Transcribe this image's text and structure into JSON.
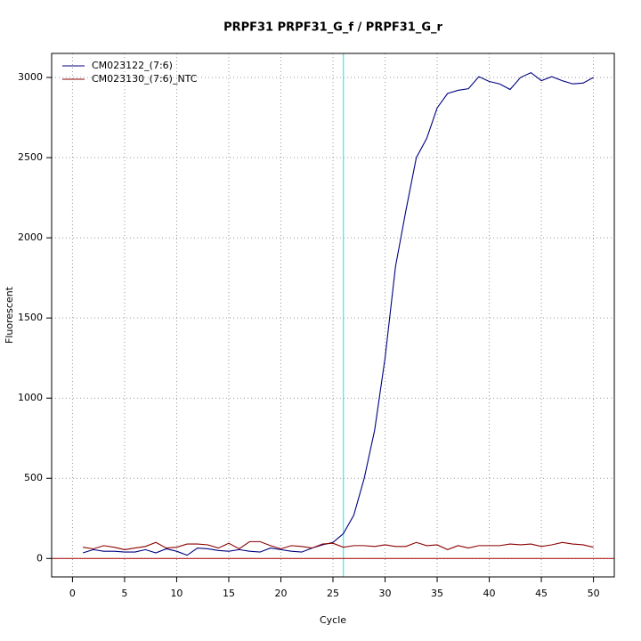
{
  "chart_data": {
    "type": "line",
    "title": "PRPF31  PRPF31_G_f / PRPF31_G_r",
    "x_label": "Cycle",
    "y_label": "Fluorescent",
    "x": [
      1,
      2,
      3,
      4,
      5,
      6,
      7,
      8,
      9,
      10,
      11,
      12,
      13,
      14,
      15,
      16,
      17,
      18,
      19,
      20,
      21,
      22,
      23,
      24,
      25,
      26,
      27,
      28,
      29,
      30,
      31,
      32,
      33,
      34,
      35,
      36,
      37,
      38,
      39,
      40,
      41,
      42,
      43,
      44,
      45,
      46,
      47,
      48,
      49,
      50
    ],
    "series": [
      {
        "name": "CM023122_(7:6)",
        "color": "#000080",
        "values": [
          35,
          55,
          45,
          45,
          40,
          40,
          55,
          35,
          60,
          45,
          20,
          65,
          60,
          50,
          45,
          55,
          45,
          40,
          65,
          55,
          45,
          40,
          65,
          85,
          100,
          155,
          270,
          500,
          800,
          1250,
          1820,
          2170,
          2500,
          2620,
          2810,
          2900,
          2920,
          2930,
          3005,
          2975,
          2960,
          2925,
          3000,
          3030,
          2980,
          3005,
          2980,
          2960,
          2965,
          3000
        ]
      },
      {
        "name": "CM023130_(7:6)_NTC",
        "color": "#8b0000",
        "values": [
          70,
          60,
          80,
          70,
          55,
          65,
          75,
          100,
          65,
          70,
          90,
          90,
          85,
          65,
          95,
          60,
          105,
          105,
          80,
          60,
          80,
          75,
          65,
          90,
          95,
          70,
          80,
          80,
          75,
          85,
          75,
          75,
          100,
          80,
          85,
          55,
          80,
          65,
          80,
          80,
          80,
          90,
          85,
          90,
          75,
          85,
          100,
          90,
          85,
          70
        ]
      }
    ],
    "threshold_cycle": 26,
    "threshold_color": "#40e8e8",
    "baseline": 0,
    "baseline_color": "#b22222",
    "xlim": [
      -2,
      52
    ],
    "ylim": [
      -115,
      3150
    ],
    "xticks": [
      0,
      5,
      10,
      15,
      20,
      25,
      30,
      35,
      40,
      45,
      50
    ],
    "yticks": [
      0,
      500,
      1000,
      1500,
      2000,
      2500,
      3000
    ],
    "grid": true,
    "legend": "top-left"
  }
}
